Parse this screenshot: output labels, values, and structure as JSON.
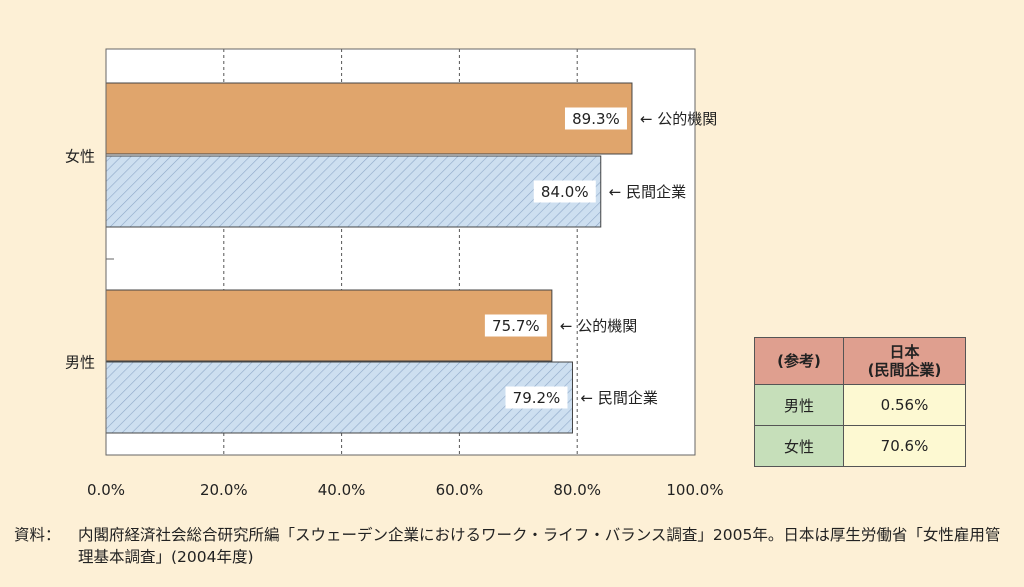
{
  "chart_data": {
    "type": "bar",
    "orientation": "horizontal",
    "groups": [
      "女性",
      "男性"
    ],
    "bars": [
      {
        "group": "女性",
        "label": "公的機関",
        "value": 89.3,
        "value_label": "89.3%",
        "style": "solid"
      },
      {
        "group": "女性",
        "label": "民間企業",
        "value": 84.0,
        "value_label": "84.0%",
        "style": "hatched"
      },
      {
        "group": "男性",
        "label": "公的機関",
        "value": 75.7,
        "value_label": "75.7%",
        "style": "solid"
      },
      {
        "group": "男性",
        "label": "民間企業",
        "value": 79.2,
        "value_label": "79.2%",
        "style": "hatched"
      }
    ],
    "xlim": [
      0,
      100
    ],
    "xticks": [
      "0.0%",
      "20.0%",
      "40.0%",
      "60.0%",
      "80.0%",
      "100.0%"
    ],
    "arrow_prefix": "←",
    "grid": "vertical dashed",
    "colors": {
      "public": "#e0a56c",
      "private_fill": "#cddff0",
      "private_hatch": "#8fa8c8"
    }
  },
  "reference_table": {
    "header_left": "(参考)",
    "header_right_1": "日本",
    "header_right_2": "(民間企業)",
    "rows": [
      {
        "label": "男性",
        "value": "0.56%"
      },
      {
        "label": "女性",
        "value": "70.6%"
      }
    ]
  },
  "source": {
    "label": "資料：",
    "text": "内閣府経済社会総合研究所編「スウェーデン企業におけるワーク・ライフ・バランス調査」2005年。日本は厚生労働省「女性雇用管理基本調査」(2004年度)"
  }
}
